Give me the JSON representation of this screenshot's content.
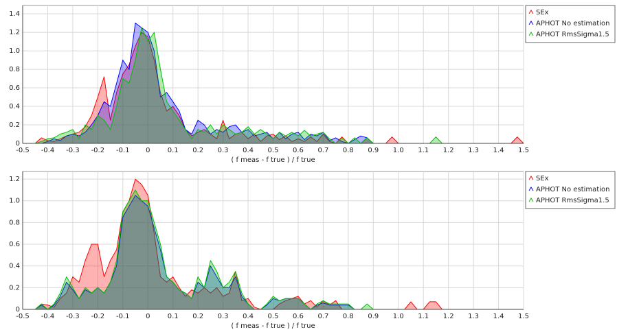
{
  "chart_data": [
    {
      "type": "area",
      "xlabel": "( f meas - f true ) / f true",
      "x": [
        -0.5,
        -0.475,
        -0.45,
        -0.425,
        -0.4,
        -0.375,
        -0.35,
        -0.325,
        -0.3,
        -0.275,
        -0.25,
        -0.225,
        -0.2,
        -0.175,
        -0.15,
        -0.125,
        -0.1,
        -0.075,
        -0.05,
        -0.025,
        0,
        0.025,
        0.05,
        0.075,
        0.1,
        0.125,
        0.15,
        0.175,
        0.2,
        0.225,
        0.25,
        0.275,
        0.3,
        0.325,
        0.35,
        0.375,
        0.4,
        0.425,
        0.45,
        0.475,
        0.5,
        0.525,
        0.55,
        0.575,
        0.6,
        0.625,
        0.65,
        0.675,
        0.7,
        0.725,
        0.75,
        0.775,
        0.8,
        0.825,
        0.85,
        0.875,
        0.9,
        0.925,
        0.95,
        0.975,
        1,
        1.025,
        1.05,
        1.075,
        1.1,
        1.125,
        1.15,
        1.175,
        1.2,
        1.225,
        1.25,
        1.275,
        1.3,
        1.325,
        1.35,
        1.375,
        1.4,
        1.425,
        1.45,
        1.475,
        1.5
      ],
      "series": [
        {
          "name": "SEx",
          "color": "#ff0000",
          "values": [
            0,
            0,
            0,
            0.06,
            0.03,
            0.02,
            0.05,
            0.08,
            0.1,
            0.12,
            0.18,
            0.3,
            0.5,
            0.72,
            0.25,
            0.55,
            0.75,
            0.85,
            1.05,
            1.2,
            1.15,
            0.9,
            0.55,
            0.35,
            0.4,
            0.3,
            0.15,
            0.08,
            0.12,
            0.15,
            0.1,
            0.05,
            0.25,
            0.05,
            0.1,
            0.12,
            0.05,
            0.1,
            0.02,
            0.08,
            0.1,
            0.04,
            0.08,
            0.02,
            0.05,
            0.02,
            0.07,
            0.02,
            0.1,
            0.02,
            0,
            0.07,
            0,
            0,
            0,
            0.06,
            0,
            0,
            0,
            0.07,
            0,
            0,
            0,
            0,
            0,
            0,
            0,
            0,
            0,
            0,
            0,
            0,
            0,
            0,
            0,
            0,
            0,
            0,
            0,
            0.07,
            0
          ]
        },
        {
          "name": "APHOT No estimation",
          "color": "#0000ff",
          "values": [
            0,
            0,
            0,
            0,
            0.02,
            0.05,
            0.03,
            0.08,
            0.1,
            0.08,
            0.12,
            0.2,
            0.3,
            0.45,
            0.4,
            0.65,
            0.9,
            0.8,
            1.3,
            1.25,
            1.2,
            1.0,
            0.5,
            0.55,
            0.45,
            0.35,
            0.15,
            0.1,
            0.25,
            0.2,
            0.1,
            0.15,
            0.12,
            0.18,
            0.2,
            0.12,
            0.15,
            0.08,
            0.1,
            0.12,
            0.05,
            0.12,
            0.05,
            0.1,
            0.12,
            0.04,
            0.1,
            0.08,
            0.12,
            0.03,
            0.06,
            0.02,
            0,
            0.04,
            0.08,
            0.06,
            0,
            0,
            0,
            0,
            0,
            0,
            0,
            0,
            0,
            0,
            0,
            0,
            0,
            0,
            0,
            0,
            0,
            0,
            0,
            0,
            0,
            0,
            0,
            0,
            0
          ]
        },
        {
          "name": "APHOT RmsSigma1.5",
          "color": "#00c000",
          "values": [
            0,
            0,
            0,
            0.02,
            0.05,
            0.06,
            0.1,
            0.12,
            0.15,
            0.05,
            0.2,
            0.15,
            0.3,
            0.25,
            0.15,
            0.4,
            0.7,
            0.65,
            0.9,
            1.25,
            1.1,
            1.2,
            0.8,
            0.45,
            0.35,
            0.25,
            0.15,
            0.05,
            0.15,
            0.12,
            0.2,
            0.1,
            0.2,
            0.15,
            0.1,
            0.12,
            0.18,
            0.1,
            0.15,
            0.1,
            0.05,
            0.12,
            0.08,
            0.12,
            0.08,
            0.14,
            0.08,
            0.1,
            0.12,
            0.05,
            0,
            0.06,
            0,
            0.06,
            0,
            0.06,
            0,
            0,
            0,
            0,
            0,
            0,
            0,
            0,
            0,
            0,
            0.07,
            0,
            0,
            0,
            0,
            0,
            0,
            0,
            0,
            0,
            0,
            0,
            0,
            0,
            0
          ]
        }
      ],
      "xlim": [
        -0.5,
        1.5
      ],
      "ylim": [
        0,
        1.49
      ],
      "xticks": [
        -0.5,
        -0.4,
        -0.3,
        -0.2,
        -0.1,
        0,
        0.1,
        0.2,
        0.3,
        0.4,
        0.5,
        0.6,
        0.7,
        0.8,
        0.9,
        {
          "value": 1,
          "label": "1.0"
        },
        1.1,
        1.2,
        1.3,
        1.4,
        1.5
      ],
      "yticks": [
        0,
        0.2,
        0.4,
        0.6,
        0.8,
        {
          "value": 1,
          "label": "1.0"
        },
        1.2,
        1.4
      ],
      "grid": true,
      "legend": "right"
    },
    {
      "type": "area",
      "xlabel": "( f meas - f true ) / f true",
      "x": [
        -0.5,
        -0.475,
        -0.45,
        -0.425,
        -0.4,
        -0.375,
        -0.35,
        -0.325,
        -0.3,
        -0.275,
        -0.25,
        -0.225,
        -0.2,
        -0.175,
        -0.15,
        -0.125,
        -0.1,
        -0.075,
        -0.05,
        -0.025,
        0,
        0.025,
        0.05,
        0.075,
        0.1,
        0.125,
        0.15,
        0.175,
        0.2,
        0.225,
        0.25,
        0.275,
        0.3,
        0.325,
        0.35,
        0.375,
        0.4,
        0.425,
        0.45,
        0.475,
        0.5,
        0.525,
        0.55,
        0.575,
        0.6,
        0.625,
        0.65,
        0.675,
        0.7,
        0.725,
        0.75,
        0.775,
        0.8,
        0.825,
        0.85,
        0.875,
        0.9,
        0.925,
        0.95,
        0.975,
        1,
        1.025,
        1.05,
        1.075,
        1.1,
        1.125,
        1.15,
        1.175,
        1.2,
        1.225,
        1.25,
        1.275,
        1.3,
        1.325,
        1.35,
        1.375,
        1.4,
        1.425,
        1.45,
        1.475,
        1.5
      ],
      "series": [
        {
          "name": "SEx",
          "color": "#ff0000",
          "values": [
            0,
            0,
            0,
            0.05,
            0.04,
            0.02,
            0.1,
            0.15,
            0.3,
            0.25,
            0.45,
            0.6,
            0.6,
            0.3,
            0.45,
            0.55,
            0.9,
            1.0,
            1.2,
            1.15,
            1.05,
            0.7,
            0.3,
            0.25,
            0.3,
            0.2,
            0.12,
            0.18,
            0.15,
            0.2,
            0.15,
            0.2,
            0.12,
            0.15,
            0.35,
            0.08,
            0.1,
            0.02,
            0,
            0,
            0,
            0.05,
            0.08,
            0.1,
            0.12,
            0.05,
            0.08,
            0.02,
            0.08,
            0.04,
            0.08,
            0,
            0,
            0,
            0,
            0,
            0,
            0,
            0,
            0,
            0,
            0,
            0.07,
            0,
            0,
            0.07,
            0.07,
            0,
            0,
            0,
            0,
            0,
            0,
            0,
            0,
            0,
            0,
            0,
            0,
            0,
            0
          ]
        },
        {
          "name": "APHOT No estimation",
          "color": "#0000ff",
          "values": [
            0,
            0,
            0,
            0.04,
            0,
            0.04,
            0.12,
            0.25,
            0.18,
            0.1,
            0.18,
            0.15,
            0.2,
            0.15,
            0.25,
            0.4,
            0.85,
            0.95,
            1.05,
            1.0,
            0.95,
            0.75,
            0.55,
            0.3,
            0.25,
            0.18,
            0.15,
            0.1,
            0.25,
            0.2,
            0.4,
            0.3,
            0.2,
            0.2,
            0.3,
            0.12,
            0.05,
            0,
            0,
            0.04,
            0.1,
            0.08,
            0.1,
            0.1,
            0.1,
            0.05,
            0,
            0.04,
            0.06,
            0.04,
            0.04,
            0.04,
            0.04,
            0,
            0,
            0,
            0,
            0,
            0,
            0,
            0,
            0,
            0,
            0,
            0,
            0,
            0,
            0,
            0,
            0,
            0,
            0,
            0,
            0,
            0,
            0,
            0,
            0,
            0,
            0,
            0
          ]
        },
        {
          "name": "APHOT RmsSigma1.5",
          "color": "#00c000",
          "values": [
            0,
            0,
            0,
            0.05,
            0,
            0.05,
            0.15,
            0.3,
            0.2,
            0.1,
            0.2,
            0.15,
            0.2,
            0.15,
            0.25,
            0.45,
            0.9,
            1.0,
            1.1,
            1.0,
            1.0,
            0.8,
            0.6,
            0.3,
            0.25,
            0.18,
            0.15,
            0.1,
            0.3,
            0.2,
            0.45,
            0.35,
            0.2,
            0.25,
            0.35,
            0.15,
            0.05,
            0,
            0,
            0.05,
            0.12,
            0.08,
            0.1,
            0.1,
            0.1,
            0.05,
            0,
            0.05,
            0.08,
            0.05,
            0.05,
            0.05,
            0.05,
            0,
            0,
            0.05,
            0,
            0,
            0,
            0,
            0,
            0,
            0,
            0,
            0,
            0,
            0,
            0,
            0,
            0,
            0,
            0,
            0,
            0,
            0,
            0,
            0,
            0,
            0,
            0,
            0
          ]
        }
      ],
      "xlim": [
        -0.5,
        1.5
      ],
      "ylim": [
        0,
        1.27
      ],
      "xticks": [
        -0.5,
        -0.4,
        -0.3,
        -0.2,
        -0.1,
        0,
        0.1,
        0.2,
        0.3,
        0.4,
        0.5,
        0.6,
        0.7,
        0.8,
        0.9,
        {
          "value": 1,
          "label": "1.0"
        },
        1.1,
        1.2,
        1.3,
        1.4,
        1.5
      ],
      "yticks": [
        0,
        0.2,
        0.4,
        0.6,
        0.8,
        {
          "value": 1,
          "label": "1.0"
        },
        1.2
      ],
      "grid": true,
      "legend": "right"
    }
  ]
}
